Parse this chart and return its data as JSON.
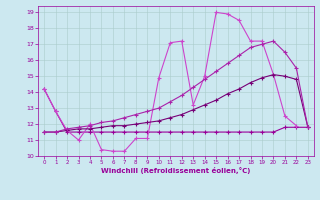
{
  "xlabel": "Windchill (Refroidissement éolien,°C)",
  "background_color": "#cce8f0",
  "grid_color": "#aacccc",
  "line_color": "#990099",
  "xlim": [
    -0.5,
    23.5
  ],
  "ylim": [
    10,
    19.4
  ],
  "xticks": [
    0,
    1,
    2,
    3,
    4,
    5,
    6,
    7,
    8,
    9,
    10,
    11,
    12,
    13,
    14,
    15,
    16,
    17,
    18,
    19,
    20,
    21,
    22,
    23
  ],
  "yticks": [
    10,
    11,
    12,
    13,
    14,
    15,
    16,
    17,
    18,
    19
  ],
  "series": [
    {
      "x": [
        0,
        1,
        2,
        3,
        4,
        5,
        6,
        7,
        8,
        9,
        10,
        11,
        12,
        13,
        14,
        15,
        16,
        17,
        18,
        19,
        20,
        21,
        22,
        23
      ],
      "y": [
        14.2,
        12.8,
        11.5,
        11.5,
        11.5,
        11.5,
        11.5,
        11.5,
        11.5,
        11.5,
        11.5,
        11.5,
        11.5,
        11.5,
        11.5,
        11.5,
        11.5,
        11.5,
        11.5,
        11.5,
        11.5,
        11.8,
        11.8,
        11.8
      ],
      "color": "#990099"
    },
    {
      "x": [
        0,
        1,
        2,
        3,
        4,
        5,
        6,
        7,
        8,
        9,
        10,
        11,
        12,
        13,
        14,
        15,
        16,
        17,
        18,
        19,
        20,
        21,
        22
      ],
      "y": [
        14.2,
        12.8,
        11.6,
        11.0,
        12.0,
        10.4,
        10.3,
        10.3,
        11.1,
        11.1,
        14.9,
        17.1,
        17.2,
        13.2,
        15.0,
        19.0,
        18.9,
        18.5,
        17.2,
        17.2,
        15.1,
        12.5,
        11.9
      ],
      "color": "#cc44cc"
    },
    {
      "x": [
        0,
        1,
        2,
        3,
        4,
        5,
        6,
        7,
        8,
        9,
        10,
        11,
        12,
        13,
        14,
        15,
        16,
        17,
        18,
        19,
        20,
        21,
        22,
        23
      ],
      "y": [
        11.5,
        11.5,
        11.6,
        11.7,
        11.7,
        11.8,
        11.9,
        11.9,
        12.0,
        12.1,
        12.2,
        12.4,
        12.6,
        12.9,
        13.2,
        13.5,
        13.9,
        14.2,
        14.6,
        14.9,
        15.1,
        15.0,
        14.8,
        11.8
      ],
      "color": "#770077"
    },
    {
      "x": [
        0,
        1,
        2,
        3,
        4,
        5,
        6,
        7,
        8,
        9,
        10,
        11,
        12,
        13,
        14,
        15,
        16,
        17,
        18,
        19,
        20,
        21,
        22,
        23
      ],
      "y": [
        11.5,
        11.5,
        11.7,
        11.8,
        11.9,
        12.1,
        12.2,
        12.4,
        12.6,
        12.8,
        13.0,
        13.4,
        13.8,
        14.3,
        14.8,
        15.3,
        15.8,
        16.3,
        16.8,
        17.0,
        17.2,
        16.5,
        15.5,
        11.8
      ],
      "color": "#aa22aa"
    }
  ]
}
